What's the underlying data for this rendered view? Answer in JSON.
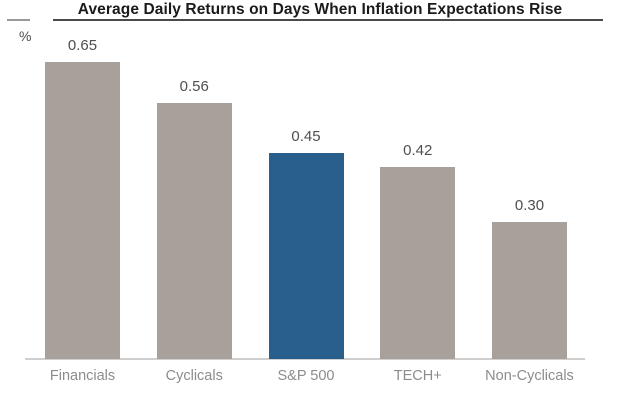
{
  "header": {
    "title": "Average Daily Returns on Days When Inflation Expectations Rise",
    "unit_label": "%"
  },
  "chart_data": {
    "type": "bar",
    "title": "Average Daily Returns on Days When Inflation Expectations Rise",
    "unit": "%",
    "categories": [
      "Financials",
      "Cyclicals",
      "S&P 500",
      "TECH+",
      "Non-Cyclicals"
    ],
    "values": [
      0.65,
      0.56,
      0.45,
      0.42,
      0.3
    ],
    "value_labels": [
      "0.65",
      "0.56",
      "0.45",
      "0.42",
      "0.30"
    ],
    "bar_colors": [
      "#a8a09a",
      "#a8a09a",
      "#295f8c",
      "#a8a09a",
      "#a8a09a"
    ],
    "highlighted_category": "S&P 500",
    "xlabel": "",
    "ylabel": "%",
    "ylim": [
      0,
      0.7
    ],
    "grid": false,
    "legend": false
  },
  "colors": {
    "bar_default": "#a8a09a",
    "bar_highlight": "#295f8c",
    "title_text": "#1a1a1a",
    "title_rule": "#4a4a4a",
    "value_label": "#4f4f4f",
    "category_label": "#8c8c8c",
    "axis_line": "#cfcfcf",
    "background": "#ffffff"
  }
}
